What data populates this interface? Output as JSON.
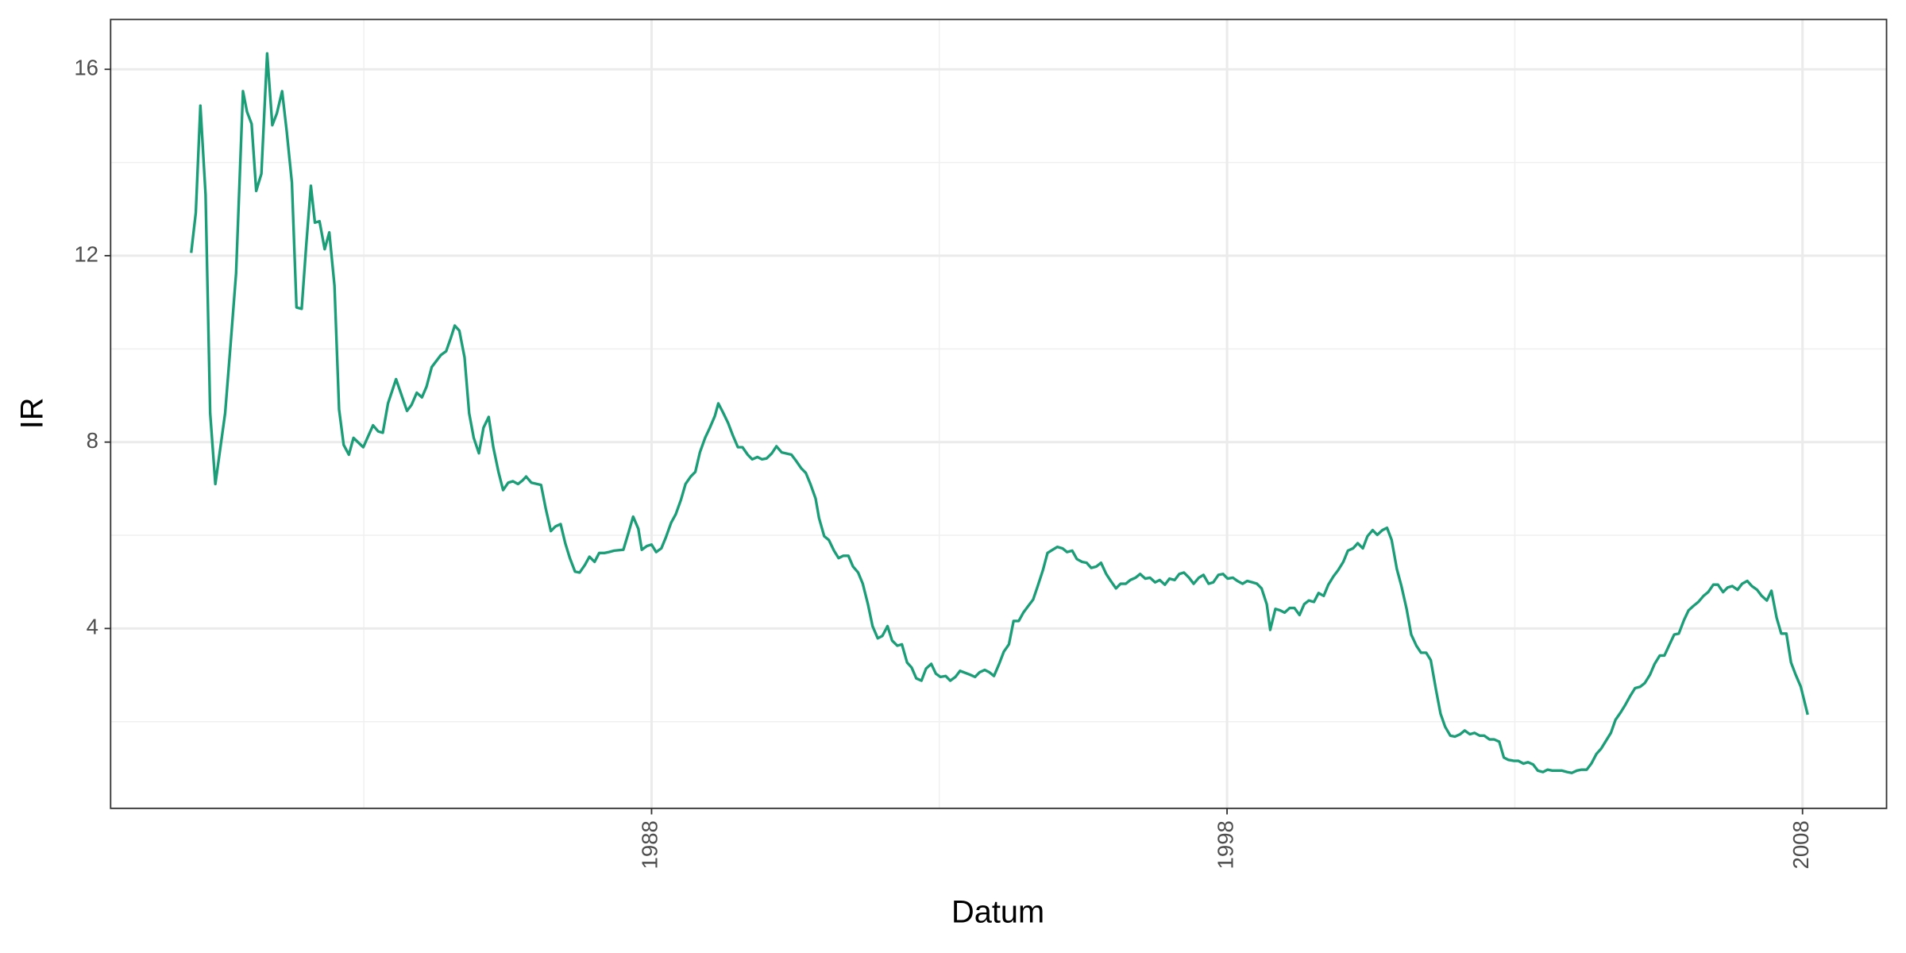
{
  "chart_data": {
    "type": "line",
    "xlabel": "Datum",
    "ylabel": "IR",
    "color": "#1b9e77",
    "grid": true,
    "xlim": [
      1978.6,
      2009.46
    ],
    "xticks": [
      1988,
      1998,
      2008
    ],
    "xminorticks": [
      1983,
      1993,
      2003
    ],
    "ylim": [
      0.14,
      17.07
    ],
    "yticks": [
      4,
      8,
      12,
      16
    ],
    "yminorticks": [
      2,
      6,
      10,
      14
    ],
    "x": [
      1980.0,
      1980.08,
      1980.16,
      1980.25,
      1980.33,
      1980.42,
      1980.59,
      1980.69,
      1980.78,
      1980.84,
      1980.9,
      1980.97,
      1981.05,
      1981.13,
      1981.22,
      1981.32,
      1981.41,
      1981.49,
      1981.58,
      1981.66,
      1981.75,
      1981.83,
      1981.92,
      1982.0,
      1982.08,
      1982.15,
      1982.23,
      1982.32,
      1982.4,
      1982.49,
      1982.57,
      1982.65,
      1982.74,
      1982.82,
      1982.99,
      1983.16,
      1983.25,
      1983.33,
      1983.42,
      1983.56,
      1983.75,
      1983.83,
      1983.92,
      1984.01,
      1984.09,
      1984.18,
      1984.34,
      1984.43,
      1984.51,
      1984.58,
      1984.66,
      1984.75,
      1984.83,
      1984.91,
      1985.0,
      1985.08,
      1985.17,
      1985.25,
      1985.34,
      1985.42,
      1985.51,
      1985.59,
      1985.68,
      1985.76,
      1985.82,
      1985.91,
      1986.08,
      1986.16,
      1986.25,
      1986.33,
      1986.42,
      1986.5,
      1986.58,
      1986.67,
      1986.75,
      1986.84,
      1986.92,
      1987.01,
      1987.09,
      1987.18,
      1987.26,
      1987.35,
      1987.51,
      1987.6,
      1987.68,
      1987.77,
      1987.83,
      1987.92,
      1988.0,
      1988.08,
      1988.17,
      1988.25,
      1988.34,
      1988.42,
      1988.51,
      1988.59,
      1988.68,
      1988.76,
      1988.84,
      1988.93,
      1989.01,
      1989.1,
      1989.16,
      1989.24,
      1989.33,
      1989.41,
      1989.5,
      1989.58,
      1989.67,
      1989.75,
      1989.84,
      1989.92,
      1990.0,
      1990.09,
      1990.17,
      1990.26,
      1990.43,
      1990.51,
      1990.6,
      1990.68,
      1990.76,
      1990.85,
      1990.91,
      1991.0,
      1991.08,
      1991.17,
      1991.25,
      1991.33,
      1991.42,
      1991.5,
      1991.59,
      1991.67,
      1991.76,
      1991.84,
      1991.93,
      1992.01,
      1992.1,
      1992.18,
      1992.27,
      1992.35,
      1992.44,
      1992.52,
      1992.6,
      1992.69,
      1992.77,
      1992.86,
      1992.94,
      1993.02,
      1993.11,
      1993.19,
      1993.28,
      1993.36,
      1993.53,
      1993.62,
      1993.7,
      1993.79,
      1993.87,
      1993.95,
      1994.04,
      1994.12,
      1994.21,
      1994.29,
      1994.38,
      1994.46,
      1994.55,
      1994.63,
      1994.71,
      1994.8,
      1994.88,
      1994.97,
      1995.05,
      1995.14,
      1995.22,
      1995.31,
      1995.39,
      1995.48,
      1995.56,
      1995.64,
      1995.73,
      1995.81,
      1995.9,
      1995.98,
      1996.07,
      1996.15,
      1996.24,
      1996.32,
      1996.41,
      1996.49,
      1996.58,
      1996.66,
      1996.75,
      1996.83,
      1996.92,
      1997.0,
      1997.09,
      1997.17,
      1997.25,
      1997.34,
      1997.42,
      1997.51,
      1997.59,
      1997.68,
      1997.76,
      1997.85,
      1997.93,
      1998.01,
      1998.1,
      1998.18,
      1998.27,
      1998.35,
      1998.44,
      1998.52,
      1998.6,
      1998.69,
      1998.75,
      1998.84,
      1998.92,
      1999.0,
      1999.09,
      1999.17,
      1999.26,
      1999.34,
      1999.42,
      1999.51,
      1999.59,
      1999.68,
      1999.76,
      1999.85,
      1999.93,
      2000.02,
      2000.1,
      2000.19,
      2000.27,
      2000.36,
      2000.44,
      2000.53,
      2000.61,
      2000.7,
      2000.78,
      2000.86,
      2000.95,
      2001.03,
      2001.12,
      2001.2,
      2001.29,
      2001.37,
      2001.46,
      2001.54,
      2001.63,
      2001.71,
      2001.79,
      2001.88,
      2001.96,
      2002.05,
      2002.13,
      2002.22,
      2002.3,
      2002.39,
      2002.47,
      2002.56,
      2002.64,
      2002.73,
      2002.81,
      2002.89,
      2002.98,
      2003.06,
      2003.15,
      2003.23,
      2003.32,
      2003.4,
      2003.49,
      2003.57,
      2003.65,
      2003.74,
      2003.82,
      2003.91,
      2003.99,
      2004.08,
      2004.16,
      2004.25,
      2004.33,
      2004.42,
      2004.5,
      2004.59,
      2004.67,
      2004.75,
      2004.84,
      2004.92,
      2005.01,
      2005.09,
      2005.18,
      2005.26,
      2005.35,
      2005.43,
      2005.52,
      2005.6,
      2005.69,
      2005.77,
      2005.85,
      2005.94,
      2006.02,
      2006.11,
      2006.19,
      2006.28,
      2006.36,
      2006.45,
      2006.53,
      2006.62,
      2006.7,
      2006.78,
      2006.87,
      2006.95,
      2007.04,
      2007.12,
      2007.21,
      2007.29,
      2007.38,
      2007.46,
      2007.55,
      2007.63,
      2007.72,
      2007.8,
      2007.88,
      2007.97,
      2008.09
    ],
    "values": [
      12.06,
      12.92,
      15.22,
      13.31,
      8.62,
      7.1,
      8.62,
      10.18,
      11.62,
      13.57,
      15.53,
      15.09,
      14.83,
      13.39,
      13.76,
      16.34,
      14.8,
      15.06,
      15.53,
      14.67,
      13.57,
      10.89,
      10.86,
      12.24,
      13.5,
      12.71,
      12.74,
      12.14,
      12.5,
      11.36,
      8.7,
      7.94,
      7.73,
      8.09,
      7.89,
      8.36,
      8.23,
      8.2,
      8.83,
      9.35,
      8.67,
      8.8,
      9.06,
      8.96,
      9.19,
      9.61,
      9.87,
      9.95,
      10.23,
      10.5,
      10.39,
      9.82,
      8.62,
      8.09,
      7.76,
      8.31,
      8.54,
      7.89,
      7.36,
      6.97,
      7.13,
      7.16,
      7.1,
      7.18,
      7.26,
      7.13,
      7.08,
      6.58,
      6.09,
      6.19,
      6.24,
      5.83,
      5.51,
      5.22,
      5.2,
      5.36,
      5.54,
      5.43,
      5.62,
      5.62,
      5.64,
      5.67,
      5.69,
      6.06,
      6.4,
      6.14,
      5.69,
      5.77,
      5.8,
      5.64,
      5.72,
      5.96,
      6.27,
      6.45,
      6.76,
      7.1,
      7.26,
      7.36,
      7.78,
      8.09,
      8.3,
      8.56,
      8.83,
      8.64,
      8.41,
      8.15,
      7.89,
      7.89,
      7.73,
      7.63,
      7.68,
      7.63,
      7.65,
      7.76,
      7.91,
      7.78,
      7.73,
      7.6,
      7.44,
      7.34,
      7.1,
      6.79,
      6.37,
      5.98,
      5.9,
      5.67,
      5.51,
      5.56,
      5.56,
      5.33,
      5.2,
      4.96,
      4.52,
      4.05,
      3.79,
      3.84,
      4.05,
      3.74,
      3.63,
      3.66,
      3.27,
      3.16,
      2.93,
      2.88,
      3.14,
      3.24,
      3.03,
      2.96,
      2.98,
      2.88,
      2.96,
      3.09,
      3.01,
      2.96,
      3.06,
      3.11,
      3.06,
      2.98,
      3.24,
      3.5,
      3.66,
      4.16,
      4.16,
      4.34,
      4.49,
      4.62,
      4.91,
      5.25,
      5.62,
      5.69,
      5.75,
      5.72,
      5.64,
      5.67,
      5.49,
      5.43,
      5.41,
      5.3,
      5.33,
      5.41,
      5.17,
      5.02,
      4.86,
      4.96,
      4.96,
      5.04,
      5.09,
      5.17,
      5.07,
      5.09,
      4.99,
      5.04,
      4.94,
      5.07,
      5.04,
      5.17,
      5.2,
      5.09,
      4.96,
      5.09,
      5.15,
      4.96,
      4.99,
      5.15,
      5.17,
      5.07,
      5.09,
      5.02,
      4.96,
      5.02,
      4.99,
      4.96,
      4.86,
      4.52,
      3.97,
      4.42,
      4.39,
      4.34,
      4.44,
      4.44,
      4.29,
      4.52,
      4.6,
      4.57,
      4.76,
      4.7,
      4.94,
      5.12,
      5.25,
      5.43,
      5.67,
      5.72,
      5.83,
      5.72,
      5.98,
      6.11,
      6.01,
      6.11,
      6.16,
      5.9,
      5.28,
      4.91,
      4.42,
      3.87,
      3.63,
      3.48,
      3.48,
      3.32,
      2.69,
      2.17,
      1.89,
      1.7,
      1.68,
      1.73,
      1.81,
      1.73,
      1.76,
      1.7,
      1.7,
      1.62,
      1.62,
      1.57,
      1.23,
      1.18,
      1.16,
      1.16,
      1.1,
      1.13,
      1.08,
      0.95,
      0.92,
      0.97,
      0.95,
      0.95,
      0.95,
      0.92,
      0.9,
      0.95,
      0.97,
      0.97,
      1.1,
      1.31,
      1.42,
      1.6,
      1.76,
      2.04,
      2.2,
      2.36,
      2.56,
      2.72,
      2.75,
      2.83,
      3.01,
      3.24,
      3.42,
      3.42,
      3.66,
      3.87,
      3.89,
      4.18,
      4.39,
      4.49,
      4.57,
      4.7,
      4.78,
      4.94,
      4.94,
      4.78,
      4.88,
      4.91,
      4.83,
      4.96,
      5.02,
      4.91,
      4.83,
      4.7,
      4.6,
      4.81,
      4.23,
      3.89,
      3.89,
      3.27,
      3.01,
      2.75,
      2.15
    ]
  }
}
